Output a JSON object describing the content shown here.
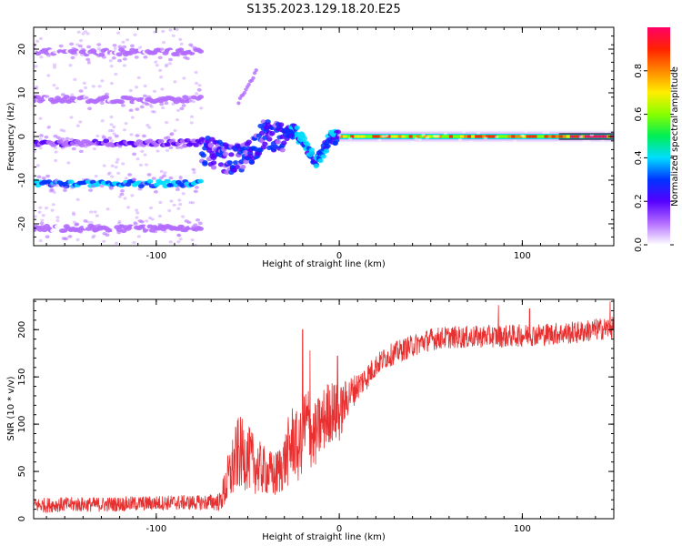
{
  "figure": {
    "title": "S135.2023.129.18.20.E25"
  },
  "chart_data": [
    {
      "type": "heatmap",
      "xlabel": "Height of straight line (km)",
      "ylabel": "Frequency (Hz)",
      "xlim": [
        -167,
        150
      ],
      "ylim": [
        -25,
        25
      ],
      "xticks": [
        -100,
        0,
        100
      ],
      "xtick_labels": [
        "-100",
        "0",
        "100"
      ],
      "yticks": [
        -20,
        -10,
        0,
        10,
        20
      ],
      "ytick_labels": [
        "-20",
        "-10",
        "0",
        "10",
        "20"
      ],
      "grid": false,
      "colorbar": {
        "label": "Normalized spectral amplitude",
        "range": [
          0,
          1
        ],
        "ticks": [
          0.0,
          0.2,
          0.4,
          0.6,
          0.8
        ],
        "tick_labels": [
          "0.0",
          "0.2",
          "0.4",
          "0.6",
          "0.8"
        ],
        "colormap": "hsv (purple → blue → cyan → green → yellow → red → magenta)"
      },
      "bands": [
        {
          "name": "-10 Hz harmonic",
          "x": [
            -167,
            -75
          ],
          "freq": -10.8,
          "amplitude": 0.35
        },
        {
          "name": "0 Hz (left)",
          "x": [
            -167,
            -75
          ],
          "freq": -1.5,
          "amplitude": 0.14
        },
        {
          "name": "+10 Hz harmonic",
          "x": [
            -167,
            -75
          ],
          "freq": 8.5,
          "amplitude": 0.08
        },
        {
          "name": "+20 Hz harmonic",
          "x": [
            -167,
            -75
          ],
          "freq": 19.3,
          "amplitude": 0.07
        },
        {
          "name": "-20 Hz harmonic",
          "x": [
            -167,
            -75
          ],
          "freq": -21.0,
          "amplitude": 0.08
        },
        {
          "name": "main signal",
          "x": [
            0,
            150
          ],
          "freq": 0,
          "amplitude": 0.75
        }
      ],
      "colors": {
        "colorbar": [
          "#ffffff",
          "#b26cff",
          "#5500ff",
          "#0033ff",
          "#00ddff",
          "#00ee55",
          "#88ff00",
          "#ffee00",
          "#ff8800",
          "#ff2200",
          "#ff0066"
        ]
      }
    },
    {
      "type": "line",
      "xlabel": "Height of straight line (km)",
      "ylabel": "SNR (10 * v/v)",
      "xlim": [
        -167,
        150
      ],
      "ylim": [
        0,
        232
      ],
      "xticks": [
        -100,
        0,
        100
      ],
      "xtick_labels": [
        "-100",
        "0",
        "100"
      ],
      "yticks": [
        0,
        50,
        100,
        150,
        200
      ],
      "ytick_labels": [
        "0",
        "50",
        "100",
        "150",
        "200"
      ],
      "grid": false,
      "series": [
        {
          "color": "#e83030",
          "x": [
            -167,
            -150,
            -130,
            -110,
            -90,
            -75,
            -65,
            -62,
            -58,
            -55,
            -50,
            -45,
            -40,
            -35,
            -30,
            -27,
            -25,
            -22,
            -20,
            -17,
            -14,
            -10,
            -5,
            0,
            5,
            10,
            15,
            20,
            25,
            30,
            40,
            50,
            60,
            70,
            80,
            90,
            100,
            110,
            120,
            130,
            140,
            150
          ],
          "y": [
            14,
            15,
            15,
            16,
            17,
            17,
            18,
            35,
            55,
            70,
            65,
            55,
            50,
            45,
            60,
            75,
            85,
            70,
            95,
            100,
            85,
            100,
            115,
            110,
            130,
            140,
            150,
            162,
            170,
            175,
            183,
            190,
            192,
            192,
            193,
            193,
            194,
            195,
            196,
            197,
            200,
            202
          ],
          "noise": [
            8,
            8,
            8,
            8,
            8,
            8,
            10,
            25,
            35,
            40,
            35,
            30,
            25,
            25,
            30,
            40,
            40,
            35,
            45,
            45,
            35,
            35,
            35,
            30,
            20,
            15,
            14,
            12,
            12,
            12,
            12,
            12,
            12,
            12,
            12,
            12,
            12,
            12,
            12,
            12,
            12,
            12
          ],
          "spikes": [
            {
              "x": -20,
              "y": 200
            },
            {
              "x": -16,
              "y": 178
            },
            {
              "x": -1,
              "y": 172
            },
            {
              "x": 87,
              "y": 226
            },
            {
              "x": 104,
              "y": 222
            },
            {
              "x": 148,
              "y": 230
            }
          ]
        }
      ]
    }
  ]
}
